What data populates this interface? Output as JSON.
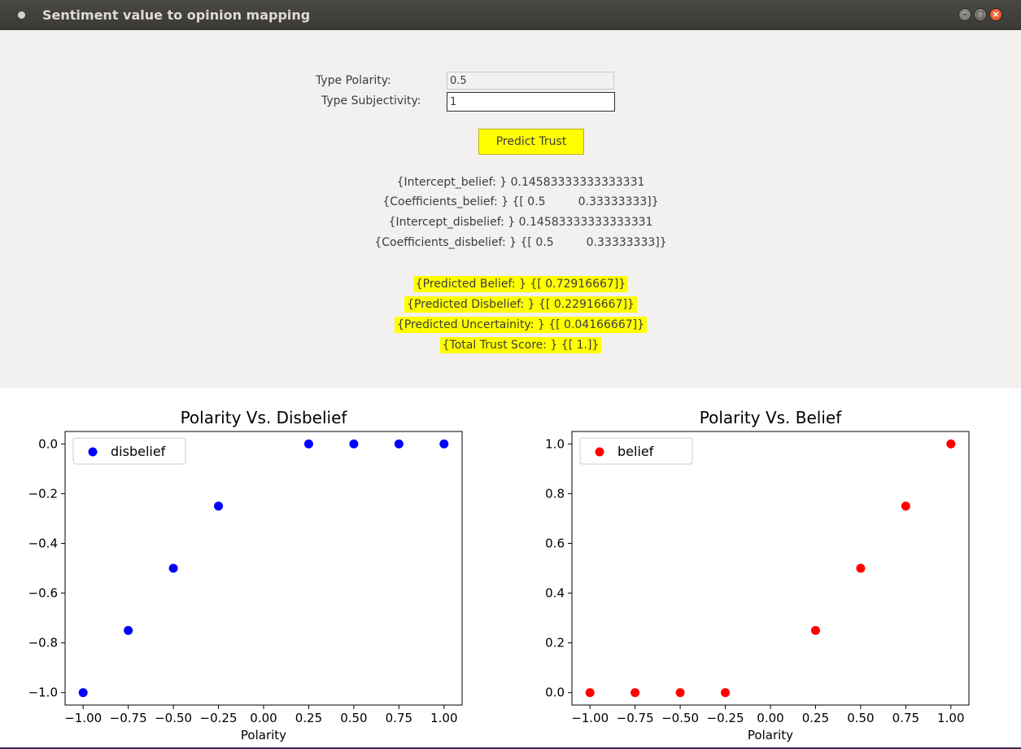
{
  "window": {
    "title": "Sentiment value to opinion mapping"
  },
  "form": {
    "polarity_label": "Type Polarity:",
    "polarity_value": "0.5",
    "subjectivity_label": "Type Subjectivity:",
    "subjectivity_value": "1",
    "predict_button": "Predict Trust"
  },
  "results": {
    "intercept_belief": "{Intercept_belief: } 0.14583333333333331",
    "coefficients_belief": "{Coefficients_belief: } {[ 0.5         0.33333333]}",
    "intercept_disbelief": "{Intercept_disbelief: } 0.14583333333333331",
    "coefficients_disbelief": "{Coefficients_disbelief: } {[ 0.5         0.33333333]}",
    "predicted_belief": "{Predicted Belief: } {[ 0.72916667]}",
    "predicted_disbelief": "{Predicted Disbelief: } {[ 0.22916667]}",
    "predicted_uncertainity": "{Predicted Uncertainity: } {[ 0.04166667]}",
    "total_trust_score": "{Total Trust Score: } {[ 1.]}"
  },
  "colors": {
    "highlight": "#ffff00",
    "disbelief_marker": "#0000ff",
    "belief_marker": "#ff0000"
  },
  "chart_data": [
    {
      "type": "scatter",
      "title": "Polarity Vs. Disbelief",
      "xlabel": "Polarity",
      "ylabel": "",
      "xlim": [
        -1.1,
        1.1
      ],
      "ylim": [
        -1.05,
        0.05
      ],
      "xticks": [
        -1.0,
        -0.75,
        -0.5,
        -0.25,
        0.0,
        0.25,
        0.5,
        0.75,
        1.0
      ],
      "xtick_labels": [
        "−1.00",
        "−0.75",
        "−0.50",
        "−0.25",
        "0.00",
        "0.25",
        "0.50",
        "0.75",
        "1.00"
      ],
      "yticks": [
        0.0,
        -0.2,
        -0.4,
        -0.6,
        -0.8,
        -1.0
      ],
      "ytick_labels": [
        "0.0",
        "−0.2",
        "−0.4",
        "−0.6",
        "−0.8",
        "−1.0"
      ],
      "legend": "upper-left",
      "grid": false,
      "series": [
        {
          "name": "disbelief",
          "color": "#0000ff",
          "x": [
            -1.0,
            -0.75,
            -0.5,
            -0.25,
            0.25,
            0.5,
            0.75,
            1.0
          ],
          "y": [
            -1.0,
            -0.75,
            -0.5,
            -0.25,
            0.0,
            0.0,
            0.0,
            0.0
          ]
        }
      ]
    },
    {
      "type": "scatter",
      "title": "Polarity Vs. Belief",
      "xlabel": "Polarity",
      "ylabel": "",
      "xlim": [
        -1.1,
        1.1
      ],
      "ylim": [
        -0.05,
        1.05
      ],
      "xticks": [
        -1.0,
        -0.75,
        -0.5,
        -0.25,
        0.0,
        0.25,
        0.5,
        0.75,
        1.0
      ],
      "xtick_labels": [
        "−1.00",
        "−0.75",
        "−0.50",
        "−0.25",
        "0.00",
        "0.25",
        "0.50",
        "0.75",
        "1.00"
      ],
      "yticks": [
        0.0,
        0.2,
        0.4,
        0.6,
        0.8,
        1.0
      ],
      "ytick_labels": [
        "0.0",
        "0.2",
        "0.4",
        "0.6",
        "0.8",
        "1.0"
      ],
      "legend": "upper-left",
      "grid": false,
      "series": [
        {
          "name": "belief",
          "color": "#ff0000",
          "x": [
            -1.0,
            -0.75,
            -0.5,
            -0.25,
            0.25,
            0.5,
            0.75,
            1.0
          ],
          "y": [
            0.0,
            0.0,
            0.0,
            0.0,
            0.25,
            0.5,
            0.75,
            1.0
          ]
        }
      ]
    }
  ]
}
